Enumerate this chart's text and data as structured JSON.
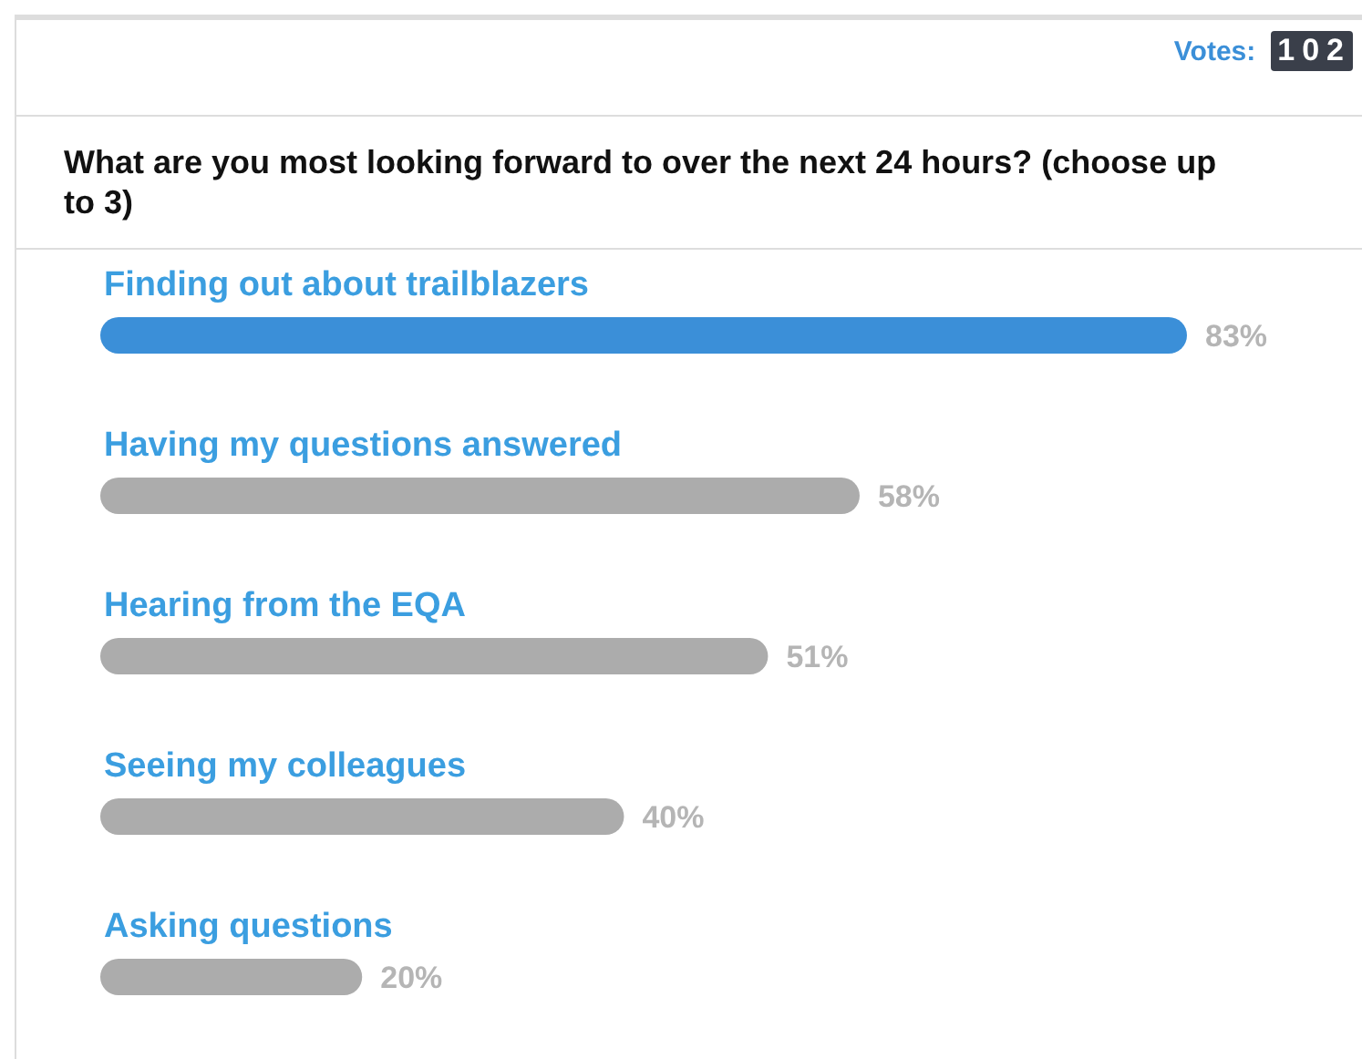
{
  "chart_data": {
    "type": "bar",
    "orientation": "horizontal",
    "title": "What are you most looking forward to over the next 24 hours? (choose up to 3)",
    "annotations": [
      "Votes: 102"
    ],
    "categories": [
      "Finding out about trailblazers",
      "Having my questions answered",
      "Hearing from the EQA",
      "Seeing my colleagues",
      "Asking questions"
    ],
    "values": [
      83,
      58,
      51,
      40,
      20
    ],
    "colors": [
      "#3b8fd8",
      "#acacac",
      "#acacac",
      "#acacac",
      "#acacac"
    ],
    "value_labels": [
      "83%",
      "58%",
      "51%",
      "40%",
      "20%"
    ]
  }
}
